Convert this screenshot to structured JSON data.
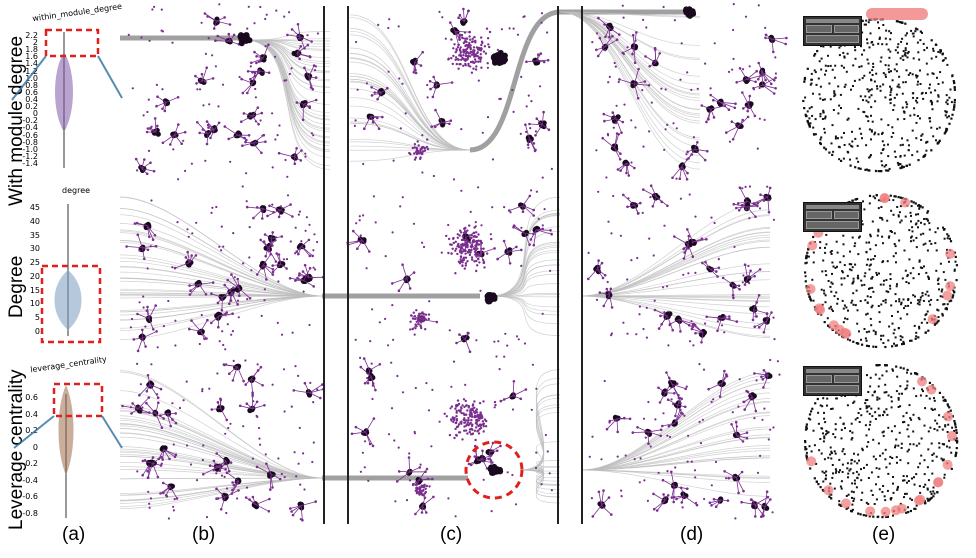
{
  "rows": [
    {
      "label": "With module degree",
      "axis_title": "within_module_degree",
      "ticks": [
        "2.2",
        "2",
        "1.8",
        "1.6",
        "1.4",
        "1.2",
        "1.0",
        "0.8",
        "0.6",
        "0.4",
        "0.2",
        "0",
        "-0.2",
        "-0.4",
        "-0.6",
        "-0.8",
        "-1.0",
        "-1.2",
        "-1.4"
      ],
      "violin_color": "#7e5aa8"
    },
    {
      "label": "Degree",
      "axis_title": "degree",
      "ticks": [
        "45",
        "40",
        "35",
        "30",
        "25",
        "20",
        "15",
        "10",
        "5",
        "0"
      ],
      "violin_color": "#7a9bbf"
    },
    {
      "label": "Leverage centrality",
      "axis_title": "leverage_centrality",
      "ticks": [
        "0.6",
        "0.4",
        "0.2",
        "0",
        "-0.2",
        "-0.4",
        "-0.6",
        "-0.8"
      ],
      "violin_color": "#9c6b4a"
    }
  ],
  "panel_labels": [
    "(a)",
    "(b)",
    "(c)",
    "(d)",
    "(e)"
  ],
  "colors": {
    "node": "#7a2f8f",
    "cluster": "#1a0a1f",
    "edge": "#bdbdbd",
    "highlight": "#e0201e",
    "selected": "#f08080"
  }
}
